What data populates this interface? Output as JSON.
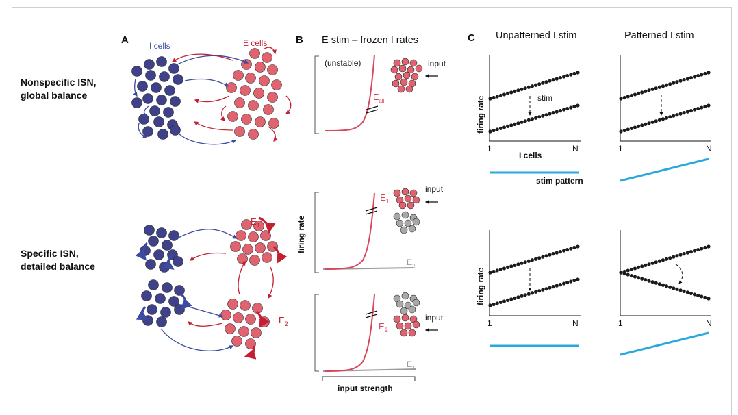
{
  "colors": {
    "i_cell": "#3f4189",
    "e_cell": "#e06470",
    "i_arrow": "#3a4ba0",
    "e_arrow": "#c42033",
    "curve": "#d9455a",
    "gray": "#9a9a9a",
    "stim": "#29a8de",
    "dot": "#1a1a1a"
  },
  "panel_a": {
    "letter": "A",
    "i_cells_label": "I cells",
    "e_cells_label": "E cells",
    "row1_label_line1": "Nonspecific ISN,",
    "row1_label_line2": "global balance",
    "row2_label_line1": "Specific ISN,",
    "row2_label_line2": "detailed balance",
    "e1_label": "E",
    "e1_sub": "1",
    "e2_label": "E",
    "e2_sub": "2"
  },
  "panel_b": {
    "letter": "B",
    "title": "E stim – frozen I rates",
    "unstable": "(unstable)",
    "input": "input",
    "eall_label": "E",
    "eall_sub": "all",
    "e1_label": "E",
    "e1_sub": "1",
    "e2_label": "E",
    "e2_sub": "2",
    "ylabel": "firing rate",
    "xlabel": "input strength"
  },
  "panel_c": {
    "letter": "C",
    "title_left": "Unpatterned I stim",
    "title_right": "Patterned I stim",
    "ylabel": "firing rate",
    "stim_label": "stim",
    "i_cells_label": "I cells",
    "stim_pattern_label": "stim pattern",
    "tick_start": "1",
    "tick_end": "N"
  }
}
